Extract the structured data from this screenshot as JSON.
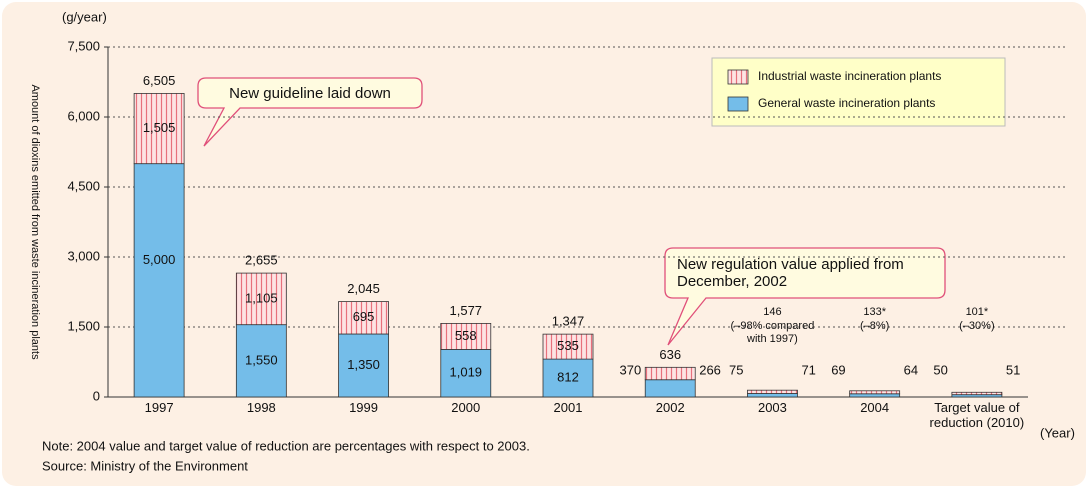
{
  "chart_data": {
    "type": "stacked-bar",
    "unit_label": "(g/year)",
    "y_axis_label": "Amount of dioxins emitted from waste incineration plants",
    "x_axis_label": "(Year)",
    "categories": [
      "1997",
      "1998",
      "1999",
      "2000",
      "2001",
      "2002",
      "2003",
      "2004",
      "Target value of reduction (2010)"
    ],
    "series": [
      {
        "name": "General waste incineration plants",
        "color": "#74bde9",
        "values": [
          5000,
          1550,
          1350,
          1019,
          812,
          370,
          75,
          69,
          50
        ],
        "value_labels": [
          "5,000",
          "1,550",
          "1,350",
          "1,019",
          "812",
          "370",
          "75",
          "69",
          "50"
        ]
      },
      {
        "name": "Industrial waste incineration plants",
        "color": "#e8707c",
        "values": [
          1505,
          1105,
          695,
          558,
          535,
          266,
          71,
          64,
          51
        ],
        "value_labels": [
          "1,505",
          "1,105",
          "695",
          "558",
          "535",
          "266",
          "71",
          "64",
          "51"
        ]
      }
    ],
    "totals": [
      6505,
      2655,
      2045,
      1577,
      1347,
      636,
      146,
      133,
      101
    ],
    "total_labels": [
      "6,505",
      "2,655",
      "2,045",
      "1,577",
      "1,347",
      "636",
      "146",
      "133*",
      "101*"
    ],
    "total_notes": [
      null,
      null,
      null,
      null,
      null,
      null,
      "(–98% compared with 1997)",
      "(–8%)",
      "(–30%)"
    ],
    "callouts": [
      "New guideline laid down",
      "New regulation value applied from December, 2002"
    ],
    "ylim": [
      0,
      7500
    ],
    "yticks": [
      0,
      {
        "value": 1500,
        "label": "1,500"
      },
      {
        "value": 3000,
        "label": "3,000"
      },
      {
        "value": 4500,
        "label": "4,500"
      },
      {
        "value": 6000,
        "label": "6,000"
      },
      {
        "value": 7500,
        "label": "7,500"
      }
    ],
    "grid": true,
    "legend": "top-right",
    "note": "Note: 2004 value and target value of reduction are percentages with respect to 2003.",
    "source": "Source: Ministry of the Environment"
  }
}
